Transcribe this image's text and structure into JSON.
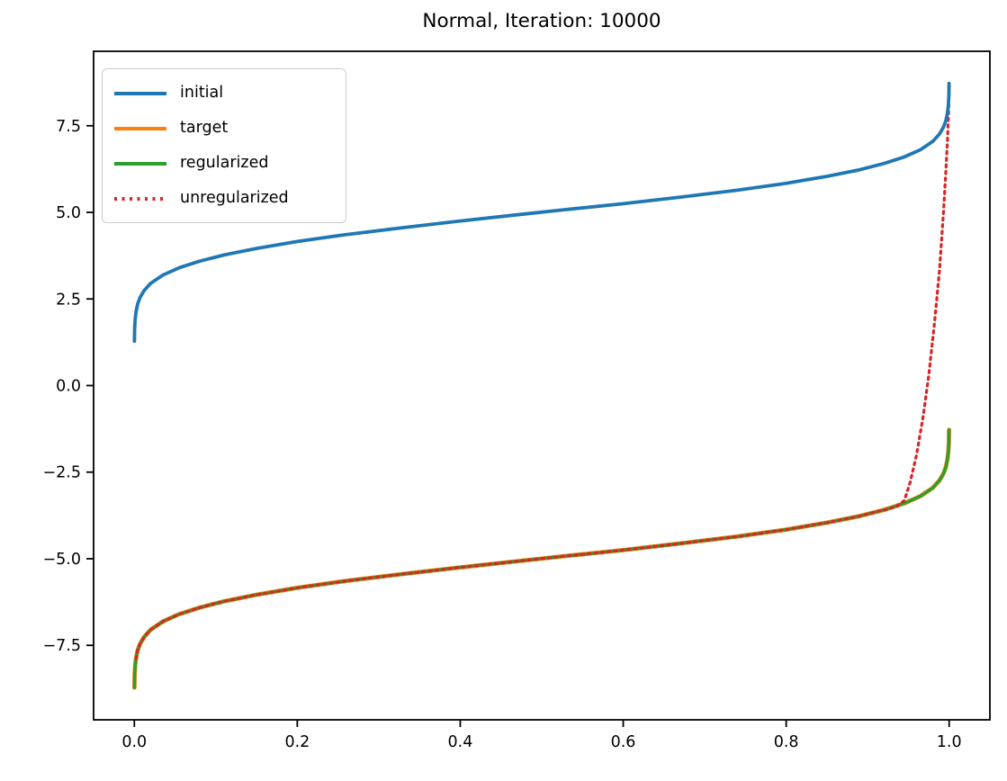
{
  "chart_data": {
    "type": "line",
    "title": "Normal, Iteration: 10000",
    "xlabel": "",
    "ylabel": "",
    "grid": false,
    "legend_position": "upper-left",
    "axes": {
      "xlim": [
        -0.05,
        1.05
      ],
      "ylim": [
        -9.65,
        9.65
      ],
      "x_ticks": [
        0.0,
        0.2,
        0.4,
        0.6,
        0.8,
        1.0
      ],
      "x_tick_labels": [
        "0.0",
        "0.2",
        "0.4",
        "0.6",
        "0.8",
        "1.0"
      ],
      "y_ticks": [
        -7.5,
        -5.0,
        -2.5,
        0.0,
        2.5,
        5.0,
        7.5
      ],
      "y_tick_labels": [
        "−7.5",
        "−5.0",
        "−2.5",
        "0.0",
        "2.5",
        "5.0",
        "7.5"
      ]
    },
    "colors": {
      "initial": "#1f77b4",
      "target": "#ff7f0e",
      "regularized": "#2ca02c",
      "unregularized": "#d62728",
      "axis": "#000000",
      "legend_border": "#cccccc"
    },
    "series": [
      {
        "name": "initial",
        "color": "#1f77b4",
        "style": "solid",
        "points": [
          [
            0.0001,
            1.28
          ],
          [
            0.0004,
            1.65
          ],
          [
            0.001,
            1.91
          ],
          [
            0.002,
            2.12
          ],
          [
            0.004,
            2.35
          ],
          [
            0.007,
            2.54
          ],
          [
            0.012,
            2.74
          ],
          [
            0.02,
            2.95
          ],
          [
            0.035,
            3.19
          ],
          [
            0.055,
            3.4
          ],
          [
            0.08,
            3.59
          ],
          [
            0.11,
            3.77
          ],
          [
            0.15,
            3.96
          ],
          [
            0.2,
            4.16
          ],
          [
            0.26,
            4.36
          ],
          [
            0.33,
            4.56
          ],
          [
            0.4,
            4.75
          ],
          [
            0.47,
            4.93
          ],
          [
            0.53,
            5.08
          ],
          [
            0.6,
            5.25
          ],
          [
            0.67,
            5.44
          ],
          [
            0.74,
            5.64
          ],
          [
            0.8,
            5.84
          ],
          [
            0.85,
            6.04
          ],
          [
            0.89,
            6.23
          ],
          [
            0.92,
            6.41
          ],
          [
            0.945,
            6.6
          ],
          [
            0.965,
            6.81
          ],
          [
            0.98,
            7.05
          ],
          [
            0.988,
            7.26
          ],
          [
            0.993,
            7.46
          ],
          [
            0.996,
            7.65
          ],
          [
            0.998,
            7.88
          ],
          [
            0.999,
            8.09
          ],
          [
            0.9996,
            8.35
          ],
          [
            0.9999,
            8.72
          ]
        ]
      },
      {
        "name": "target",
        "color": "#ff7f0e",
        "style": "solid",
        "points": [
          [
            0.0001,
            -8.72
          ],
          [
            0.0004,
            -8.35
          ],
          [
            0.001,
            -8.09
          ],
          [
            0.002,
            -7.88
          ],
          [
            0.004,
            -7.65
          ],
          [
            0.007,
            -7.46
          ],
          [
            0.012,
            -7.26
          ],
          [
            0.02,
            -7.05
          ],
          [
            0.035,
            -6.81
          ],
          [
            0.055,
            -6.6
          ],
          [
            0.08,
            -6.41
          ],
          [
            0.11,
            -6.23
          ],
          [
            0.15,
            -6.04
          ],
          [
            0.2,
            -5.84
          ],
          [
            0.26,
            -5.64
          ],
          [
            0.33,
            -5.44
          ],
          [
            0.4,
            -5.25
          ],
          [
            0.47,
            -5.07
          ],
          [
            0.53,
            -4.92
          ],
          [
            0.6,
            -4.75
          ],
          [
            0.67,
            -4.56
          ],
          [
            0.74,
            -4.36
          ],
          [
            0.8,
            -4.16
          ],
          [
            0.85,
            -3.96
          ],
          [
            0.89,
            -3.77
          ],
          [
            0.92,
            -3.59
          ],
          [
            0.945,
            -3.4
          ],
          [
            0.965,
            -3.19
          ],
          [
            0.98,
            -2.95
          ],
          [
            0.988,
            -2.74
          ],
          [
            0.993,
            -2.54
          ],
          [
            0.996,
            -2.35
          ],
          [
            0.998,
            -2.12
          ],
          [
            0.999,
            -1.91
          ],
          [
            0.9996,
            -1.65
          ],
          [
            0.9999,
            -1.28
          ]
        ]
      },
      {
        "name": "regularized",
        "color": "#2ca02c",
        "style": "solid",
        "points": [
          [
            0.0001,
            -8.72
          ],
          [
            0.0004,
            -8.35
          ],
          [
            0.001,
            -8.09
          ],
          [
            0.002,
            -7.88
          ],
          [
            0.004,
            -7.65
          ],
          [
            0.007,
            -7.46
          ],
          [
            0.012,
            -7.26
          ],
          [
            0.02,
            -7.05
          ],
          [
            0.035,
            -6.81
          ],
          [
            0.055,
            -6.6
          ],
          [
            0.08,
            -6.41
          ],
          [
            0.11,
            -6.23
          ],
          [
            0.15,
            -6.04
          ],
          [
            0.2,
            -5.84
          ],
          [
            0.26,
            -5.64
          ],
          [
            0.33,
            -5.44
          ],
          [
            0.4,
            -5.25
          ],
          [
            0.47,
            -5.07
          ],
          [
            0.53,
            -4.92
          ],
          [
            0.6,
            -4.75
          ],
          [
            0.67,
            -4.56
          ],
          [
            0.74,
            -4.36
          ],
          [
            0.8,
            -4.16
          ],
          [
            0.85,
            -3.96
          ],
          [
            0.89,
            -3.77
          ],
          [
            0.92,
            -3.59
          ],
          [
            0.945,
            -3.4
          ],
          [
            0.965,
            -3.19
          ],
          [
            0.98,
            -2.95
          ],
          [
            0.988,
            -2.74
          ],
          [
            0.993,
            -2.54
          ],
          [
            0.996,
            -2.35
          ],
          [
            0.998,
            -2.12
          ],
          [
            0.999,
            -1.91
          ],
          [
            0.9996,
            -1.65
          ],
          [
            0.9999,
            -1.28
          ]
        ]
      },
      {
        "name": "unregularized",
        "color": "#d62728",
        "style": "dotted",
        "points": [
          [
            0.002,
            -7.88
          ],
          [
            0.004,
            -7.65
          ],
          [
            0.007,
            -7.46
          ],
          [
            0.012,
            -7.26
          ],
          [
            0.02,
            -7.05
          ],
          [
            0.035,
            -6.81
          ],
          [
            0.055,
            -6.6
          ],
          [
            0.08,
            -6.41
          ],
          [
            0.11,
            -6.23
          ],
          [
            0.15,
            -6.04
          ],
          [
            0.2,
            -5.84
          ],
          [
            0.26,
            -5.64
          ],
          [
            0.33,
            -5.44
          ],
          [
            0.4,
            -5.25
          ],
          [
            0.47,
            -5.07
          ],
          [
            0.53,
            -4.92
          ],
          [
            0.6,
            -4.75
          ],
          [
            0.67,
            -4.56
          ],
          [
            0.74,
            -4.36
          ],
          [
            0.8,
            -4.16
          ],
          [
            0.85,
            -3.96
          ],
          [
            0.89,
            -3.77
          ],
          [
            0.92,
            -3.59
          ],
          [
            0.935,
            -3.5
          ],
          [
            0.945,
            -3.32
          ],
          [
            0.952,
            -2.8
          ],
          [
            0.96,
            -2.0
          ],
          [
            0.968,
            -0.9
          ],
          [
            0.975,
            0.3
          ],
          [
            0.982,
            1.8
          ],
          [
            0.988,
            3.3
          ],
          [
            0.993,
            5.0
          ],
          [
            0.996,
            6.2
          ],
          [
            0.998,
            7.1
          ],
          [
            0.9993,
            7.9
          ],
          [
            1.0,
            8.75
          ]
        ]
      }
    ]
  }
}
